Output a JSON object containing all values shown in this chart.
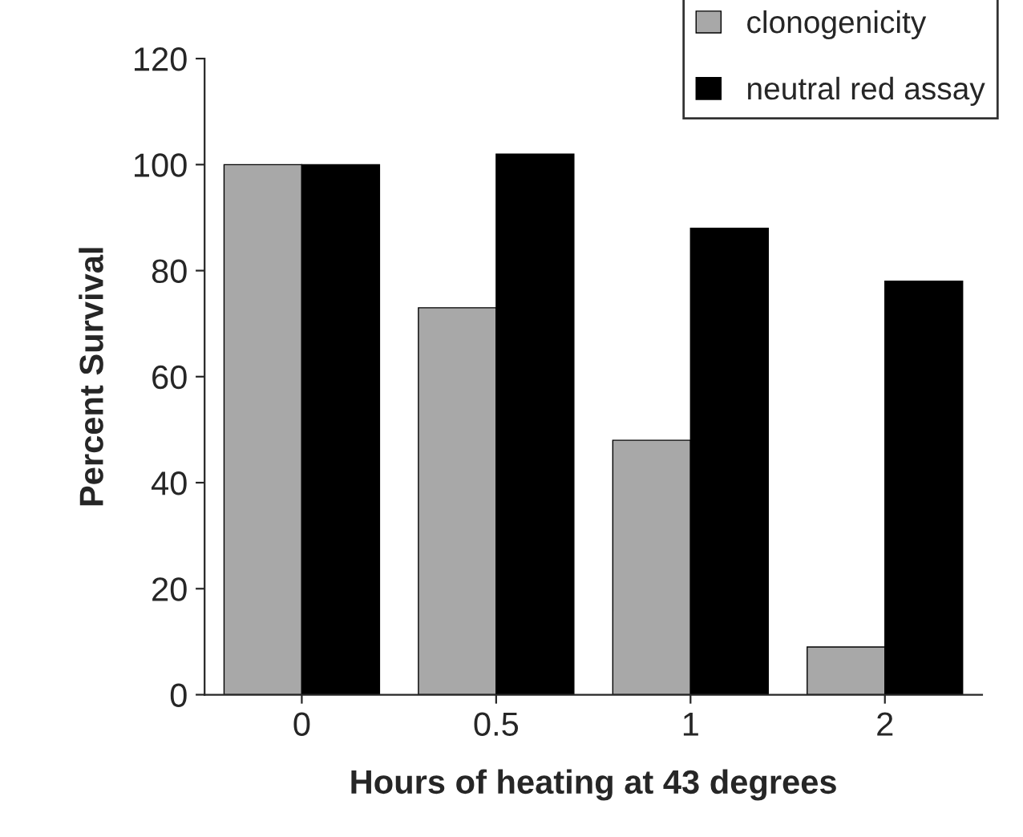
{
  "chart_data": {
    "type": "bar",
    "xlabel": "Hours of heating at 43 degrees",
    "ylabel": "Percent Survival",
    "categories": [
      "0",
      "0.5",
      "1",
      "2"
    ],
    "series": [
      {
        "name": "clonogenicity",
        "color": "#a8a8a8",
        "values": [
          100,
          73,
          48,
          9
        ]
      },
      {
        "name": "neutral red assay",
        "color": "#000000",
        "values": [
          100,
          102,
          88,
          78
        ]
      }
    ],
    "ylim": [
      0,
      120
    ],
    "yticks": [
      0,
      20,
      40,
      60,
      80,
      100,
      120
    ],
    "grid": false,
    "legend": "top right"
  }
}
